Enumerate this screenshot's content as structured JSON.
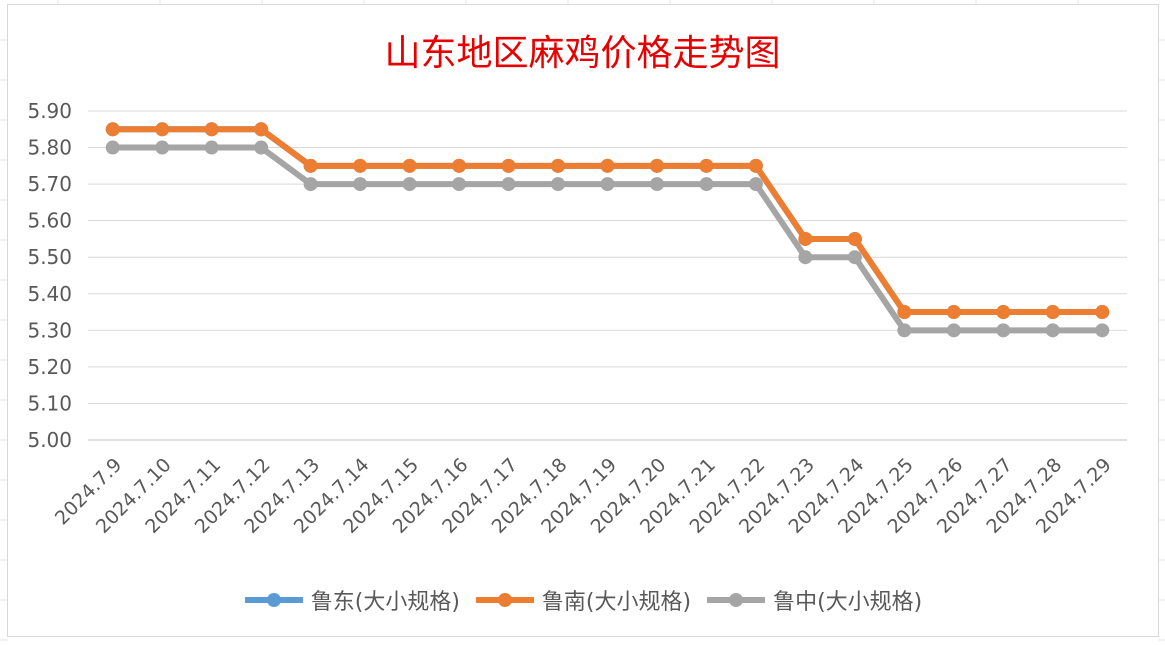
{
  "chart_data": {
    "type": "line",
    "title": "山东地区麻鸡价格走势图",
    "xlabel": "",
    "ylabel": "",
    "ylim": [
      5.0,
      5.9
    ],
    "ytick_step": 0.1,
    "yticks": [
      "5.00",
      "5.10",
      "5.20",
      "5.30",
      "5.40",
      "5.50",
      "5.60",
      "5.70",
      "5.80",
      "5.90"
    ],
    "grid": true,
    "legend_position": "bottom",
    "categories": [
      "2024.7.9",
      "2024.7.10",
      "2024.7.11",
      "2024.7.12",
      "2024.7.13",
      "2024.7.14",
      "2024.7.15",
      "2024.7.16",
      "2024.7.17",
      "2024.7.18",
      "2024.7.19",
      "2024.7.20",
      "2024.7.21",
      "2024.7.22",
      "2024.7.23",
      "2024.7.24",
      "2024.7.25",
      "2024.7.26",
      "2024.7.27",
      "2024.7.28",
      "2024.7.29"
    ],
    "series": [
      {
        "name": "鲁东(大小规格)",
        "color": "#5b9bd5",
        "values": [
          5.85,
          5.85,
          5.85,
          5.85,
          5.75,
          5.75,
          5.75,
          5.75,
          5.75,
          5.75,
          5.75,
          5.75,
          5.75,
          5.75,
          5.55,
          5.55,
          5.35,
          5.35,
          5.35,
          5.35,
          5.35
        ]
      },
      {
        "name": "鲁南(大小规格)",
        "color": "#ed7d31",
        "values": [
          5.85,
          5.85,
          5.85,
          5.85,
          5.75,
          5.75,
          5.75,
          5.75,
          5.75,
          5.75,
          5.75,
          5.75,
          5.75,
          5.75,
          5.55,
          5.55,
          5.35,
          5.35,
          5.35,
          5.35,
          5.35
        ]
      },
      {
        "name": "鲁中(大小规格)",
        "color": "#a5a5a5",
        "values": [
          5.8,
          5.8,
          5.8,
          5.8,
          5.7,
          5.7,
          5.7,
          5.7,
          5.7,
          5.7,
          5.7,
          5.7,
          5.7,
          5.7,
          5.5,
          5.5,
          5.3,
          5.3,
          5.3,
          5.3,
          5.3
        ]
      }
    ]
  }
}
